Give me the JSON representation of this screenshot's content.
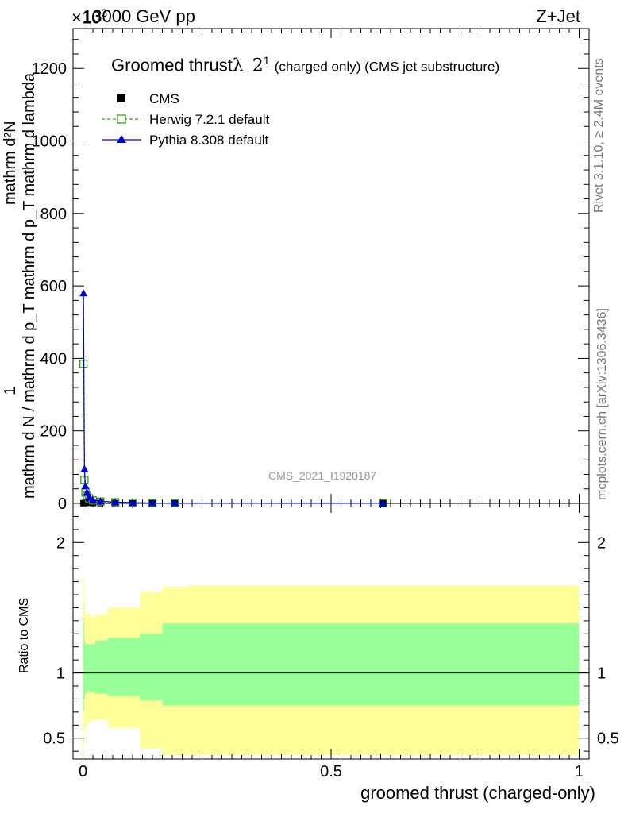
{
  "header": {
    "energy": "13000 GeV pp",
    "process": "Z+Jet",
    "exponent": "×10",
    "exponent_power": "3"
  },
  "main_plot": {
    "title": "Groomed thrust",
    "title_symbol": "λ_2",
    "title_sup": "1",
    "title_suffix": "(charged only) (CMS jet substructure)",
    "watermark": "CMS_2021_I1920187",
    "ylabel_numerator": "mathrm d²N",
    "ylabel_denominator": "mathrm d N / mathrm d p_T mathrm d p_T mathrm d lambda",
    "ylabel_one": "1",
    "side_label_top": "Rivet 3.1.10, ≥ 2.4M events",
    "side_label_bottom": "mcplots.cern.ch [arXiv:1306.3436]"
  },
  "ratio_plot": {
    "ylabel": "Ratio to CMS"
  },
  "xlabel": "groomed thrust (charged-only)",
  "legend": [
    {
      "label": "CMS",
      "color": "#000000",
      "marker": "square-filled"
    },
    {
      "label": "Herwig 7.2.1 default",
      "color": "#3a9a1a",
      "marker": "square-open",
      "line": "dashed"
    },
    {
      "label": "Pythia 8.308 default",
      "color": "#0000dd",
      "marker": "triangle",
      "line": "solid"
    }
  ],
  "chart_data": [
    {
      "type": "line",
      "title": "Groomed thrust λ_2^1 (charged only) (CMS jet substructure)",
      "xlabel": "groomed thrust (charged-only)",
      "ylabel": "1/(mathrm d N / mathrm d p_T mathrm d p_T mathrm d lambda) mathrm d²N",
      "xlim": [
        -0.02,
        1.02
      ],
      "ylim": [
        0,
        1310
      ],
      "y_scale_note": "×10^3",
      "xticks": [
        0,
        0.5,
        1
      ],
      "yticks": [
        0,
        200,
        400,
        600,
        800,
        1000,
        1200
      ],
      "series": [
        {
          "name": "CMS",
          "x": [
            0.001,
            0.005,
            0.01,
            0.02,
            0.035,
            0.065,
            0.1,
            0.14,
            0.185,
            0.605
          ],
          "y": [
            0.5,
            1.5,
            1.5,
            1.0,
            0.8,
            0.5,
            0.4,
            0.3,
            0.2,
            0.05
          ]
        },
        {
          "name": "Herwig 7.2.1 default",
          "x": [
            0.001,
            0.003,
            0.005,
            0.008,
            0.012,
            0.02,
            0.035,
            0.065,
            0.1,
            0.14,
            0.185,
            0.605
          ],
          "y": [
            385,
            65,
            30,
            22,
            14,
            8,
            5,
            3,
            2,
            1,
            1,
            0.2
          ]
        },
        {
          "name": "Pythia 8.308 default",
          "x": [
            0.001,
            0.003,
            0.005,
            0.008,
            0.012,
            0.02,
            0.035,
            0.065,
            0.1,
            0.14,
            0.185,
            0.605
          ],
          "y": [
            580,
            95,
            48,
            30,
            18,
            10,
            6,
            3.5,
            2,
            1,
            1,
            0.2
          ]
        }
      ]
    },
    {
      "type": "area",
      "ylabel": "Ratio to CMS",
      "xlim": [
        -0.02,
        1.02
      ],
      "ylim": [
        0.34,
        2.3
      ],
      "xticks": [
        0,
        0.5,
        1
      ],
      "yticks": [
        0.5,
        1,
        2
      ],
      "bin_edges": [
        0.0,
        0.002,
        0.004,
        0.007,
        0.01,
        0.015,
        0.025,
        0.05,
        0.115,
        0.16,
        0.21,
        1.0
      ],
      "bands": [
        {
          "name": "stat+syst",
          "color": "#ffff99",
          "upper": [
            1.75,
            1.55,
            1.45,
            1.45,
            1.45,
            1.43,
            1.45,
            1.5,
            1.62,
            1.66,
            1.67
          ],
          "lower": [
            0.3,
            0.55,
            0.58,
            0.6,
            0.62,
            0.64,
            0.64,
            0.58,
            0.42,
            0.37,
            0.37
          ]
        },
        {
          "name": "stat",
          "color": "#99ff99",
          "upper": [
            1.42,
            1.25,
            1.22,
            1.22,
            1.22,
            1.22,
            1.25,
            1.27,
            1.3,
            1.38,
            1.38
          ],
          "lower": [
            0.7,
            0.8,
            0.84,
            0.86,
            0.86,
            0.85,
            0.84,
            0.82,
            0.79,
            0.75,
            0.75
          ]
        }
      ],
      "reference_line": 1
    }
  ]
}
